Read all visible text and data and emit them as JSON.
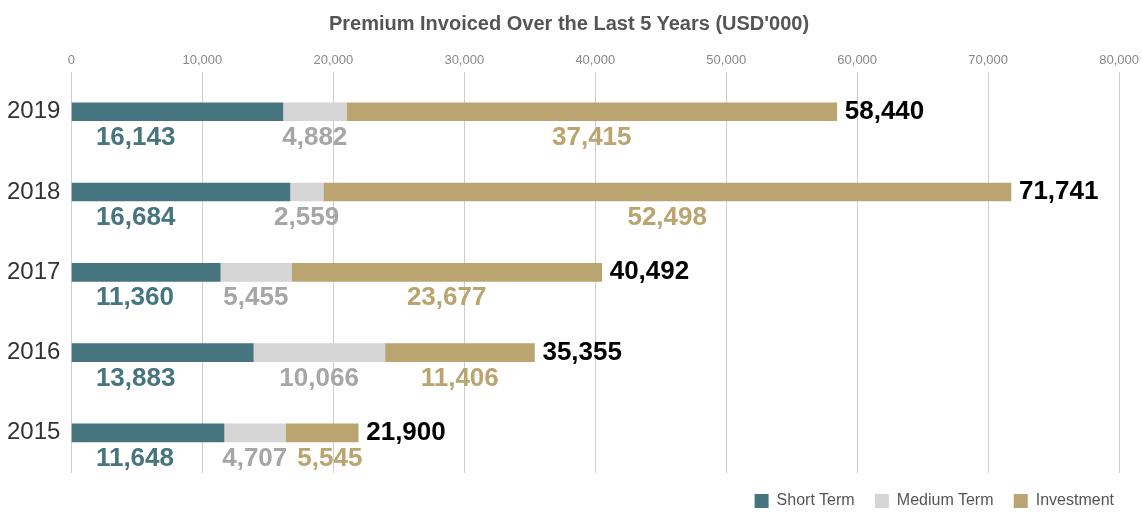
{
  "chart_data": {
    "type": "bar",
    "orientation": "horizontal",
    "stacked": true,
    "title": "Premium Invoiced Over the Last 5 Years (USD'000)",
    "categories": [
      "2019",
      "2018",
      "2017",
      "2016",
      "2015"
    ],
    "series": [
      {
        "name": "Short Term",
        "color": "#47757f",
        "values": [
          16143,
          16684,
          11360,
          13883,
          11648
        ],
        "value_labels": [
          "16,143",
          "16,684",
          "11,360",
          "13,883",
          "11,648"
        ]
      },
      {
        "name": "Medium Term",
        "color": "#d5d5d5",
        "values": [
          4882,
          2559,
          5455,
          10066,
          4707
        ],
        "value_labels": [
          "4,882",
          "2,559",
          "5,455",
          "10,066",
          "4,707"
        ]
      },
      {
        "name": "Investment",
        "color": "#baa46f",
        "values": [
          37415,
          52498,
          23677,
          11406,
          5545
        ],
        "value_labels": [
          "37,415",
          "52,498",
          "23,677",
          "11,406",
          "5,545"
        ]
      }
    ],
    "xlim": [
      0,
      80000
    ],
    "xticks": [
      {
        "value": 0,
        "label": "0"
      },
      {
        "value": 10000,
        "label": "10,000"
      },
      {
        "value": 20000,
        "label": "20,000"
      },
      {
        "value": 30000,
        "label": "30,000"
      },
      {
        "value": 40000,
        "label": "40,000"
      },
      {
        "value": 50000,
        "label": "50,000"
      },
      {
        "value": 60000,
        "label": "60,000"
      },
      {
        "value": 70000,
        "label": "70,000"
      },
      {
        "value": 80000,
        "label": "80,000"
      }
    ],
    "grid": "x",
    "legend": "bottom right",
    "totals": [
      "58,440",
      "71,741",
      "40,492",
      "35,355",
      "21,900"
    ]
  }
}
